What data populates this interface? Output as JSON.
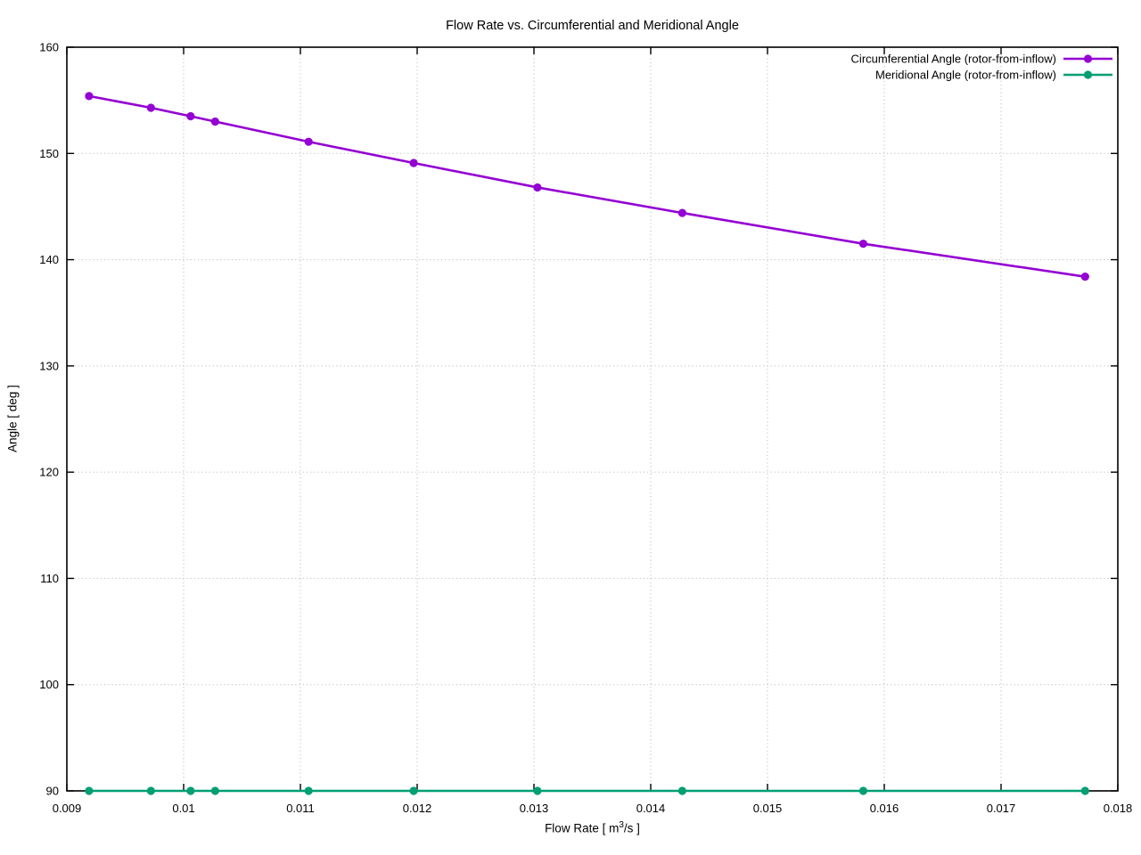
{
  "chart_data": {
    "type": "line",
    "title": "Flow Rate vs. Circumferential and Meridional Angle",
    "xlabel": "Flow Rate [ m^3/s ]",
    "xlabel_parts": {
      "pre": "Flow Rate [ m",
      "sup": "3",
      "post": "/s ]"
    },
    "ylabel": "Angle [ deg ]",
    "xlim": [
      0.009,
      0.018
    ],
    "ylim": [
      90,
      160
    ],
    "x_ticks": {
      "values": [
        0.009,
        0.01,
        0.011,
        0.012,
        0.013,
        0.014,
        0.015,
        0.016,
        0.017,
        0.018
      ],
      "labels": [
        "0.009",
        "0.01",
        "0.011",
        "0.012",
        "0.013",
        "0.014",
        "0.015",
        "0.016",
        "0.017",
        "0.018"
      ]
    },
    "y_ticks": {
      "values": [
        90,
        100,
        110,
        120,
        130,
        140,
        150,
        160
      ],
      "labels": [
        "90",
        "100",
        "110",
        "120",
        "130",
        "140",
        "150",
        "160"
      ]
    },
    "grid": "dotted",
    "grid_color": "#bdbdbd",
    "border_color": "#000000",
    "legend_position": "top-right-inside",
    "x": [
      0.00919,
      0.00972,
      0.01006,
      0.01027,
      0.01107,
      0.01197,
      0.01303,
      0.01427,
      0.01582,
      0.01772
    ],
    "series": [
      {
        "name": "Circumferential Angle (rotor-from-inflow)",
        "color": "#9400d3",
        "values": [
          155.4,
          154.3,
          153.5,
          153.0,
          151.1,
          149.1,
          146.8,
          144.4,
          141.5,
          138.4
        ]
      },
      {
        "name": "Meridional Angle (rotor-from-inflow)",
        "color": "#009e73",
        "values": [
          90,
          90,
          90,
          90,
          90,
          90,
          90,
          90,
          90,
          90
        ]
      }
    ]
  }
}
